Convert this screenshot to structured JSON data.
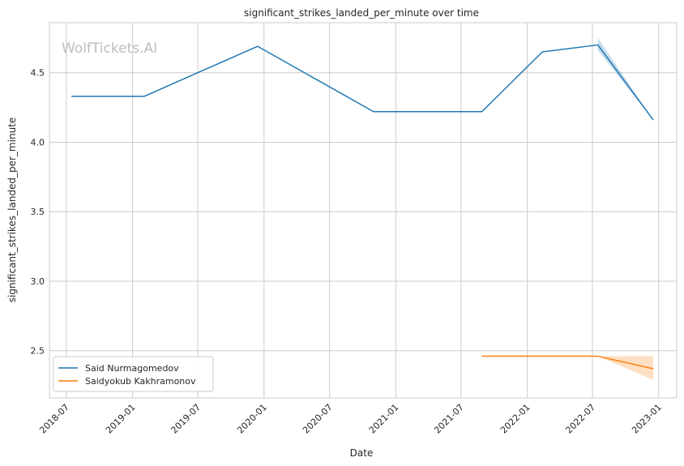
{
  "chart_data": {
    "type": "line",
    "title": "significant_strikes_landed_per_minute over time",
    "xlabel": "Date",
    "ylabel": "significant_strikes_landed_per_minute",
    "watermark": "WolfTickets.AI",
    "x_ticks": [
      "2018-07",
      "2019-01",
      "2019-07",
      "2020-01",
      "2020-07",
      "2021-01",
      "2021-07",
      "2022-01",
      "2022-07",
      "2023-01"
    ],
    "y_ticks": [
      "2.5",
      "3.0",
      "3.5",
      "4.0",
      "4.5"
    ],
    "xlim": [
      "2018-05-15",
      "2023-02-20"
    ],
    "ylim": [
      2.16,
      4.86
    ],
    "grid": true,
    "legend_position": "bottom-left",
    "series": [
      {
        "name": "Said Nurmagomedov",
        "color": "#1f77b4",
        "points": [
          {
            "x": "2018-07-15",
            "y": 4.33
          },
          {
            "x": "2019-02-02",
            "y": 4.33
          },
          {
            "x": "2019-12-14",
            "y": 4.69
          },
          {
            "x": "2020-10-31",
            "y": 4.22
          },
          {
            "x": "2021-08-28",
            "y": 4.22
          },
          {
            "x": "2022-02-12",
            "y": 4.65
          },
          {
            "x": "2022-07-16",
            "y": 4.7
          },
          {
            "x": "2022-12-17",
            "y": 4.16
          }
        ],
        "band": [
          {
            "x": "2022-07-16",
            "lo": 4.66,
            "hi": 4.75
          },
          {
            "x": "2022-12-17",
            "lo": 4.16,
            "hi": 4.16
          }
        ]
      },
      {
        "name": "Saidyokub Kakhramonov",
        "color": "#ff7f0e",
        "points": [
          {
            "x": "2021-08-28",
            "y": 2.46
          },
          {
            "x": "2022-07-16",
            "y": 2.46
          },
          {
            "x": "2022-12-17",
            "y": 2.37
          }
        ],
        "band": [
          {
            "x": "2022-07-16",
            "lo": 2.46,
            "hi": 2.46
          },
          {
            "x": "2022-12-17",
            "lo": 2.29,
            "hi": 2.46
          }
        ]
      }
    ]
  }
}
